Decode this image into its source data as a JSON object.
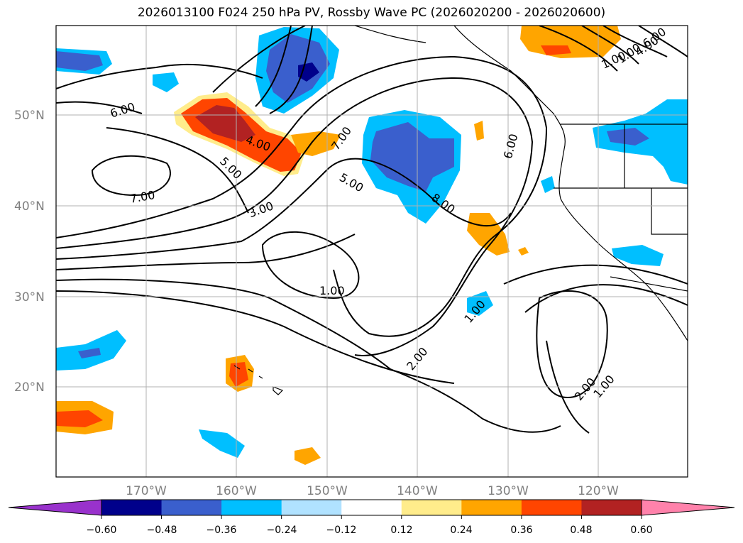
{
  "title": "2026013100 F024 250 hPa PV, Rossby Wave PC (2026020200 - 2026020600)",
  "lat_labels": [
    {
      "text": "50°N",
      "lat": 50
    },
    {
      "text": "40°N",
      "lat": 40
    },
    {
      "text": "30°N",
      "lat": 30
    },
    {
      "text": "20°N",
      "lat": 20
    }
  ],
  "lon_labels": [
    {
      "text": "170°W",
      "lon": -170
    },
    {
      "text": "160°W",
      "lon": -160
    },
    {
      "text": "150°W",
      "lon": -150
    },
    {
      "text": "140°W",
      "lon": -140
    },
    {
      "text": "130°W",
      "lon": -130
    },
    {
      "text": "120°W",
      "lon": -120
    }
  ],
  "contour_labels": [
    "6.00",
    "7.00",
    "4.00",
    "5.00",
    "3.00",
    "7.00",
    "5.00",
    "8.00",
    "6.00",
    "1.00",
    "2.00",
    "1.00",
    "2.00",
    "1.00",
    "1.00",
    "6.00",
    "4.00",
    "1.00"
  ],
  "colorbar": {
    "labels": [
      "−0.60",
      "−0.48",
      "−0.36",
      "−0.24",
      "−0.12",
      "0.12",
      "0.24",
      "0.36",
      "0.48",
      "0.60"
    ],
    "colors": [
      "#9932cc",
      "#00008b",
      "#3a5fcd",
      "#00bfff",
      "#b0e2ff",
      "#ffffff",
      "#ffec8b",
      "#ffa500",
      "#ff4500",
      "#b22222",
      "#ff82ab"
    ]
  },
  "extent": {
    "lon_min": -180,
    "lon_max": -110,
    "lat_min": 10,
    "lat_max": 60
  }
}
